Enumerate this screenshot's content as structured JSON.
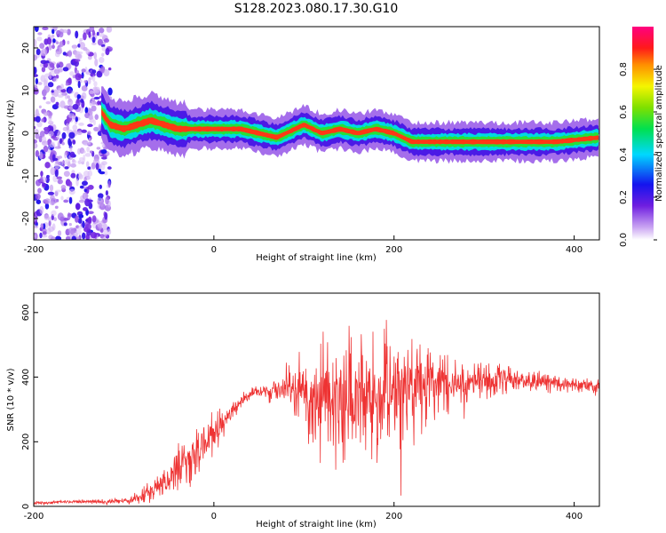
{
  "figure_title": "S128.2023.080.17.30.G10",
  "chart_data": [
    {
      "type": "heatmap",
      "xlabel": "Height of straight line (km)",
      "ylabel": "Frequency (Hz)",
      "xlim": [
        -200,
        428
      ],
      "ylim": [
        -25,
        25
      ],
      "x_ticks": [
        -200,
        0,
        200,
        400
      ],
      "y_ticks": [
        -20,
        -10,
        0,
        10,
        20
      ],
      "colorbar": {
        "label": "Normalized spectral amplitude",
        "range": [
          0,
          1
        ],
        "ticks": [
          0.0,
          0.2,
          0.4,
          0.6,
          0.8
        ],
        "tick_labels": [
          "0.0",
          "0.2",
          "0.4",
          "0.6",
          "0.8"
        ]
      },
      "ridge": {
        "x": [
          -125,
          -115,
          -100,
          -85,
          -70,
          -55,
          -40,
          -30,
          0,
          30,
          50,
          70,
          90,
          100,
          120,
          140,
          160,
          180,
          200,
          220,
          260,
          300,
          340,
          380,
          428
        ],
        "frequency": [
          5,
          2,
          1,
          2,
          3,
          2,
          1,
          1,
          1,
          1,
          0,
          -1,
          1,
          2,
          0,
          1,
          0,
          1,
          0,
          -2,
          -2,
          -2,
          -2,
          -2,
          -1
        ]
      },
      "noise_region_x": [
        -200,
        -115
      ],
      "grid": false
    },
    {
      "type": "line",
      "xlabel": "Height of straight line (km)",
      "ylabel": "SNR (10 * v/v)",
      "xlim": [
        -200,
        428
      ],
      "ylim": [
        0,
        660
      ],
      "x_ticks": [
        -200,
        0,
        200,
        400
      ],
      "y_ticks": [
        0,
        200,
        400,
        600
      ],
      "series_color": "#ee3333",
      "envelope": {
        "x": [
          -200,
          -150,
          -100,
          -80,
          -60,
          -40,
          -20,
          0,
          20,
          40,
          60,
          80,
          100,
          120,
          140,
          160,
          180,
          200,
          220,
          240,
          260,
          300,
          340,
          380,
          428
        ],
        "mean": [
          10,
          15,
          15,
          30,
          70,
          110,
          160,
          220,
          300,
          350,
          355,
          360,
          360,
          350,
          340,
          330,
          340,
          350,
          360,
          370,
          380,
          390,
          390,
          380,
          370
        ],
        "spread": [
          5,
          5,
          10,
          20,
          50,
          70,
          90,
          80,
          30,
          20,
          30,
          50,
          120,
          180,
          200,
          220,
          200,
          180,
          150,
          120,
          100,
          70,
          40,
          30,
          20
        ]
      },
      "grid": false
    }
  ]
}
